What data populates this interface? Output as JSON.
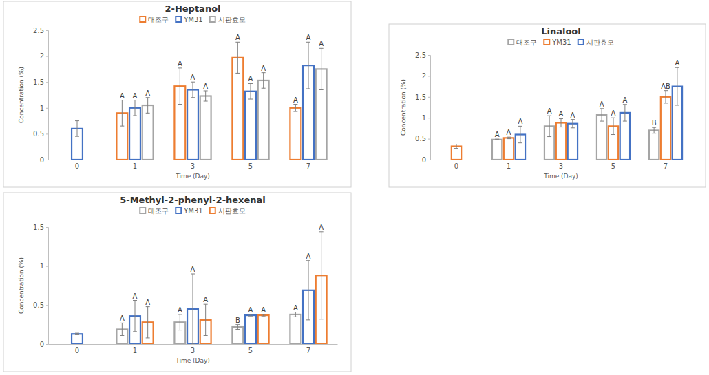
{
  "chart_data": [
    {
      "type": "bar",
      "title": "2-Heptanol",
      "x_label": "Time (Day)",
      "y_label": "Concentration (%)",
      "categories": [
        "0",
        "1",
        "3",
        "5",
        "7"
      ],
      "series": [
        {
          "name": "대조구",
          "color": "#ed7d31",
          "values": [
            null,
            0.9,
            1.42,
            1.97,
            1.0
          ],
          "errors": [
            null,
            0.25,
            0.35,
            0.3,
            0.07
          ],
          "letters": [
            null,
            "A",
            "A",
            "A",
            "A"
          ]
        },
        {
          "name": "YM31",
          "color": "#4472c4",
          "values": [
            0.6,
            1.0,
            1.35,
            1.32,
            1.82
          ],
          "errors": [
            0.15,
            0.15,
            0.15,
            0.15,
            0.45
          ],
          "letters": [
            null,
            "A",
            "A",
            "A",
            "A"
          ]
        },
        {
          "name": "시판효모",
          "color": "#a5a5a5",
          "values": [
            null,
            1.05,
            1.23,
            1.53,
            1.75
          ],
          "errors": [
            null,
            0.15,
            0.1,
            0.15,
            0.4
          ],
          "letters": [
            null,
            "A",
            "A",
            "A",
            "A"
          ]
        }
      ],
      "ylim": [
        0,
        2.5
      ],
      "yticks": [
        0,
        0.5,
        1,
        1.5,
        2,
        2.5
      ],
      "grid": false,
      "legend": "top"
    },
    {
      "type": "bar",
      "title": "Linalool",
      "x_label": "Time (Day)",
      "y_label": "Concentration (%)",
      "categories": [
        "0",
        "1",
        "3",
        "5",
        "7"
      ],
      "series": [
        {
          "name": "대조구",
          "color": "#a5a5a5",
          "values": [
            null,
            0.48,
            0.8,
            1.07,
            0.7
          ],
          "errors": [
            null,
            0.01,
            0.25,
            0.15,
            0.07
          ],
          "letters": [
            null,
            "A",
            "A",
            "A",
            "B"
          ]
        },
        {
          "name": "YM31",
          "color": "#ed7d31",
          "values": [
            0.32,
            0.52,
            0.88,
            0.8,
            1.5
          ],
          "errors": [
            0.05,
            0.02,
            0.1,
            0.2,
            0.15
          ],
          "letters": [
            null,
            "A",
            "A",
            "A",
            "AB"
          ]
        },
        {
          "name": "시판효모",
          "color": "#4472c4",
          "values": [
            null,
            0.6,
            0.86,
            1.12,
            1.75
          ],
          "errors": [
            null,
            0.2,
            0.1,
            0.2,
            0.45
          ],
          "letters": [
            null,
            "A",
            "A",
            "A",
            "A"
          ]
        }
      ],
      "ylim": [
        0,
        2.5
      ],
      "yticks": [
        0,
        0.5,
        1,
        1.5,
        2,
        2.5
      ],
      "grid": false,
      "legend": "top"
    },
    {
      "type": "bar",
      "title": "5-Methyl-2-phenyl-2-hexenal",
      "x_label": "Time (Day)",
      "y_label": "Concentration (%)",
      "categories": [
        "0",
        "1",
        "3",
        "5",
        "7"
      ],
      "series": [
        {
          "name": "대조구",
          "color": "#a5a5a5",
          "values": [
            null,
            0.19,
            0.28,
            0.22,
            0.38
          ],
          "errors": [
            null,
            0.08,
            0.1,
            0.03,
            0.03
          ],
          "letters": [
            null,
            "A",
            "A",
            "B",
            "A"
          ]
        },
        {
          "name": "YM31",
          "color": "#4472c4",
          "values": [
            0.13,
            0.36,
            0.45,
            0.37,
            0.69
          ],
          "errors": [
            0.01,
            0.2,
            0.45,
            0.01,
            0.38
          ],
          "letters": [
            null,
            "A",
            "A",
            "A",
            "A"
          ]
        },
        {
          "name": "시판효모",
          "color": "#ed7d31",
          "values": [
            null,
            0.28,
            0.31,
            0.37,
            0.88
          ],
          "errors": [
            null,
            0.2,
            0.2,
            0.01,
            0.56
          ],
          "letters": [
            null,
            "A",
            "A",
            "A",
            "A"
          ]
        }
      ],
      "ylim": [
        0,
        1.5
      ],
      "yticks": [
        0,
        0.5,
        1,
        1.5
      ],
      "grid": false,
      "legend": "top"
    }
  ]
}
